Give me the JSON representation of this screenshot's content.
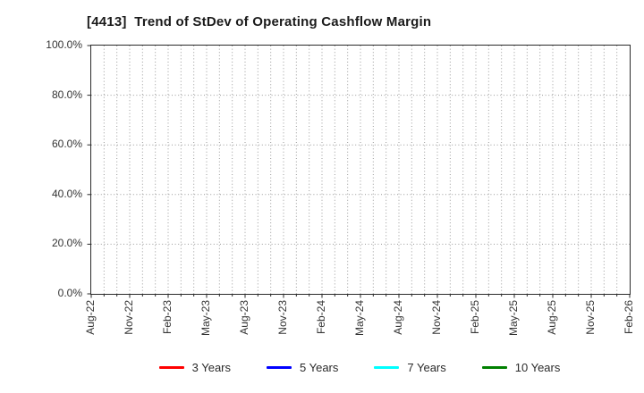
{
  "chart_data": {
    "type": "line",
    "title": "[4413]  Trend of StDev of Operating Cashflow Margin",
    "y_axis": {
      "ticks": [
        "0.0%",
        "20.0%",
        "40.0%",
        "60.0%",
        "80.0%",
        "100.0%"
      ],
      "min": 0,
      "max": 100
    },
    "x_axis": {
      "tick_labels": [
        "Aug-22",
        "Nov-22",
        "Feb-23",
        "May-23",
        "Aug-23",
        "Nov-23",
        "Feb-24",
        "May-24",
        "Aug-24",
        "Nov-24",
        "Feb-25",
        "May-25",
        "Aug-25",
        "Nov-25",
        "Feb-26"
      ],
      "months_between_labels": 3,
      "total_months": 42
    },
    "grid": {
      "show": true,
      "style": "dotted",
      "color": "#9a9a9a"
    },
    "legend_position": "bottom",
    "series": [
      {
        "name": "3 Years",
        "color": "#ff0000",
        "values": []
      },
      {
        "name": "5 Years",
        "color": "#0000ff",
        "values": []
      },
      {
        "name": "7 Years",
        "color": "#00ffff",
        "values": []
      },
      {
        "name": "10 Years",
        "color": "#008000",
        "values": []
      }
    ]
  }
}
